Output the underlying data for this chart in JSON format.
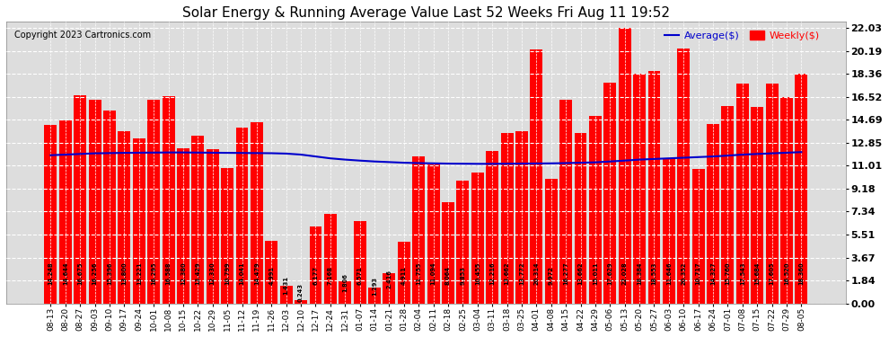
{
  "title": "Solar Energy & Running Average Value Last 52 Weeks Fri Aug 11 19:52",
  "copyright": "Copyright 2023 Cartronics.com",
  "bar_color": "#ff0000",
  "avg_line_color": "#0000cc",
  "background_color": "#ffffff",
  "plot_bg_color": "#dddddd",
  "grid_color": "#ffffff",
  "categories": [
    "08-13",
    "08-20",
    "08-27",
    "09-03",
    "09-10",
    "09-17",
    "09-24",
    "10-01",
    "10-08",
    "10-15",
    "10-22",
    "10-29",
    "11-05",
    "11-12",
    "11-19",
    "11-26",
    "12-03",
    "12-10",
    "12-17",
    "12-24",
    "12-31",
    "01-07",
    "01-14",
    "01-21",
    "01-28",
    "02-04",
    "02-11",
    "02-18",
    "02-25",
    "03-04",
    "03-11",
    "03-18",
    "03-25",
    "04-01",
    "04-08",
    "04-15",
    "04-22",
    "04-29",
    "05-06",
    "05-13",
    "05-20",
    "05-27",
    "06-03",
    "06-10",
    "06-17",
    "06-24",
    "07-01",
    "07-08",
    "07-15",
    "07-22",
    "07-29",
    "08-05"
  ],
  "weekly_values": [
    14.248,
    14.644,
    16.675,
    16.256,
    15.396,
    13.8,
    13.221,
    16.295,
    16.588,
    12.38,
    13.429,
    12.33,
    10.799,
    14.041,
    14.479,
    4.991,
    1.431,
    0.243,
    6.177,
    7.168,
    1.806,
    6.571,
    1.293,
    2.416,
    4.911,
    11.755,
    11.094,
    8.064,
    9.853,
    10.455,
    12.216,
    13.662,
    13.772,
    20.314,
    9.972,
    16.277,
    13.662,
    15.011,
    17.629,
    22.028,
    18.384,
    18.553,
    11.646,
    20.352,
    10.717,
    14.327,
    15.76,
    17.543,
    15.684,
    17.605,
    16.52,
    18.36
  ],
  "avg_values": [
    11.85,
    11.9,
    11.95,
    12.0,
    12.02,
    12.04,
    12.05,
    12.06,
    12.07,
    12.07,
    12.06,
    12.05,
    12.04,
    12.03,
    12.02,
    12.01,
    11.98,
    11.9,
    11.75,
    11.6,
    11.5,
    11.42,
    11.35,
    11.3,
    11.25,
    11.22,
    11.2,
    11.18,
    11.17,
    11.16,
    11.16,
    11.17,
    11.18,
    11.19,
    11.2,
    11.22,
    11.25,
    11.28,
    11.35,
    11.42,
    11.5,
    11.55,
    11.6,
    11.65,
    11.7,
    11.75,
    11.82,
    11.9,
    11.95,
    12.0,
    12.05,
    12.1
  ],
  "yticks": [
    0.0,
    1.84,
    3.67,
    5.51,
    7.34,
    9.18,
    11.01,
    12.85,
    14.69,
    16.52,
    18.36,
    20.19,
    22.03
  ],
  "ylim": [
    0,
    22.5
  ],
  "title_fontsize": 11,
  "tick_fontsize": 8,
  "bar_label_fontsize": 4.8,
  "legend_fontsize": 8
}
